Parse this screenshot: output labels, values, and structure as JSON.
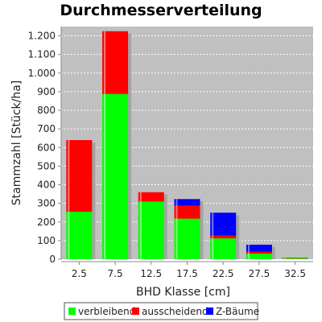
{
  "chart_data": {
    "type": "bar",
    "stacked": true,
    "title": "Durchmesserverteilung",
    "xlabel": "BHD Klasse [cm]",
    "ylabel": "Stammzahl [Stück/ha]",
    "categories": [
      "2.5",
      "7.5",
      "12.5",
      "17.5",
      "22.5",
      "27.5",
      "32.5"
    ],
    "series": [
      {
        "name": "verbleibend",
        "color": "#00ff00",
        "values": [
          255,
          888,
          310,
          218,
          112,
          30,
          5
        ]
      },
      {
        "name": "ausscheidend",
        "color": "#ff0000",
        "values": [
          385,
          337,
          50,
          70,
          15,
          10,
          3
        ]
      },
      {
        "name": "Z-Bäume",
        "color": "#0000ff",
        "values": [
          0,
          0,
          0,
          35,
          123,
          38,
          0
        ]
      }
    ],
    "ylim": [
      0,
      1250
    ],
    "yticks": [
      0,
      100,
      200,
      300,
      400,
      500,
      600,
      700,
      800,
      900,
      1000,
      1100,
      1200
    ],
    "ytick_labels": [
      "0",
      "100",
      "200",
      "300",
      "400",
      "500",
      "600",
      "700",
      "800",
      "900",
      "1.000",
      "1.100",
      "1.200"
    ],
    "grid": true,
    "plot_background": "#c0c0c0",
    "legend_position": "bottom"
  }
}
